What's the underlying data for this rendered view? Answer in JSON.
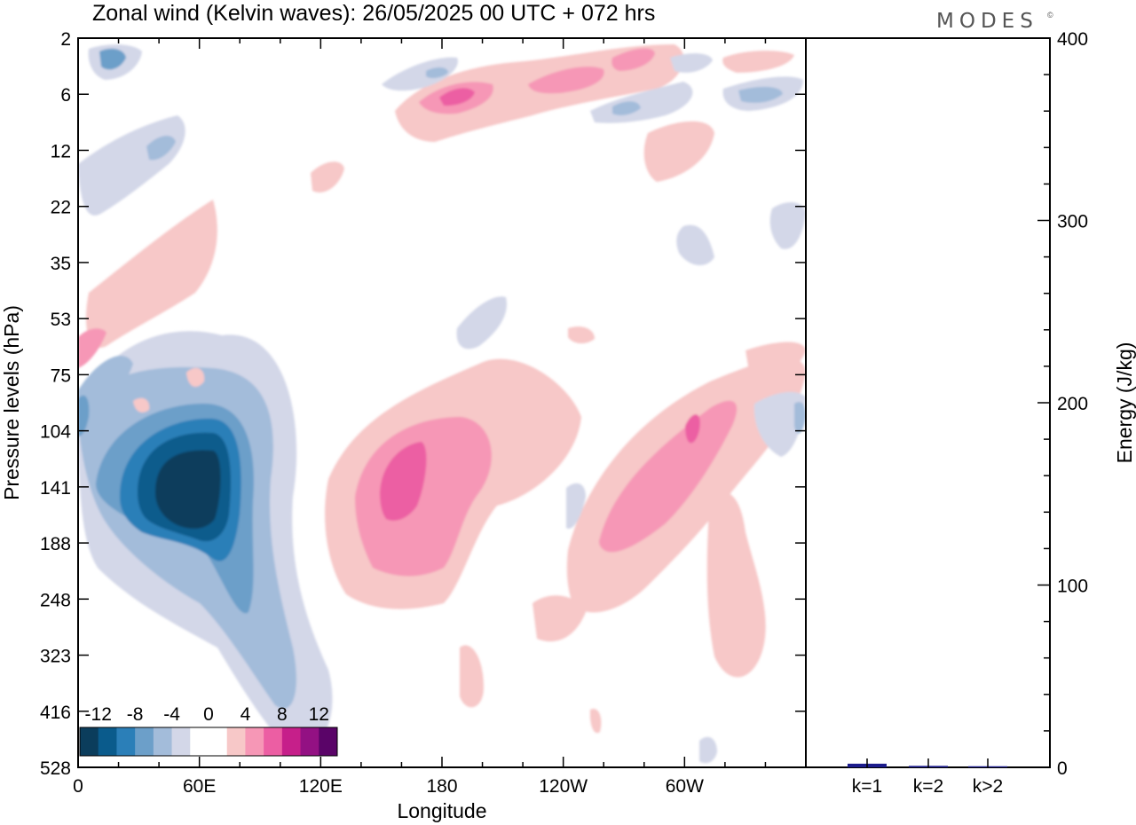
{
  "header": {
    "title": "Zonal wind (Kelvin waves):  26/05/2025  00 UTC  + 072 hrs",
    "logo_text": "MODES",
    "logo_mark": "©"
  },
  "chart_data": [
    {
      "type": "heatmap",
      "title": "Zonal wind (Kelvin waves):  26/05/2025  00 UTC  + 072 hrs",
      "xlabel": "Longitude",
      "ylabel": "Pressure levels (hPa)",
      "x_tick_labels": [
        "0",
        "60E",
        "120E",
        "180",
        "120W",
        "60W"
      ],
      "x_ticks_deg": [
        0,
        60,
        120,
        180,
        240,
        300
      ],
      "xlim_deg": [
        0,
        360
      ],
      "y_tick_labels": [
        "2",
        "6",
        "12",
        "22",
        "35",
        "53",
        "75",
        "104",
        "141",
        "188",
        "248",
        "323",
        "416",
        "528"
      ],
      "y_scale": "model levels (log-like pressure), top 2 hPa to bottom 528 hPa",
      "colorbar": {
        "labels": [
          "-12",
          "-8",
          "-4",
          "0",
          "4",
          "8",
          "12"
        ],
        "colors": [
          "#0b3d5c",
          "#0a5b8c",
          "#2b7fb8",
          "#6c9fc9",
          "#a3bcda",
          "#d3d7e8",
          "#ffffff",
          "#ffffff",
          "#f7c8c8",
          "#f697b6",
          "#ec5ea3",
          "#c61f8a",
          "#931183",
          "#5a0468"
        ]
      },
      "features": [
        {
          "sign": "negative",
          "lon": 53,
          "level": "141",
          "peak": -14,
          "note": "easterly core, ~30E–80E, 75–248 hPa, tilting east-downward to 416 hPa"
        },
        {
          "sign": "positive",
          "lon": 153,
          "level": "141",
          "peak": 9,
          "note": "westerly core, 120E–200"
        },
        {
          "sign": "positive",
          "lon": 292,
          "level": "104",
          "peak": 10,
          "note": "westerly core, 250–320"
        },
        {
          "sign": "positive",
          "lon": 185,
          "level": "6",
          "peak": 9,
          "note": "upper westerly maximum"
        }
      ]
    },
    {
      "type": "bar",
      "categories": [
        "k=1",
        "k=2",
        "k>2"
      ],
      "values": [
        2.0,
        0.8,
        0.6
      ],
      "ylabel": "Energy (J/kg)",
      "ylim": [
        0,
        400
      ],
      "y_tick_labels": [
        "0",
        "100",
        "200",
        "300",
        "400"
      ],
      "bar_color": "#1c1c8c"
    }
  ]
}
